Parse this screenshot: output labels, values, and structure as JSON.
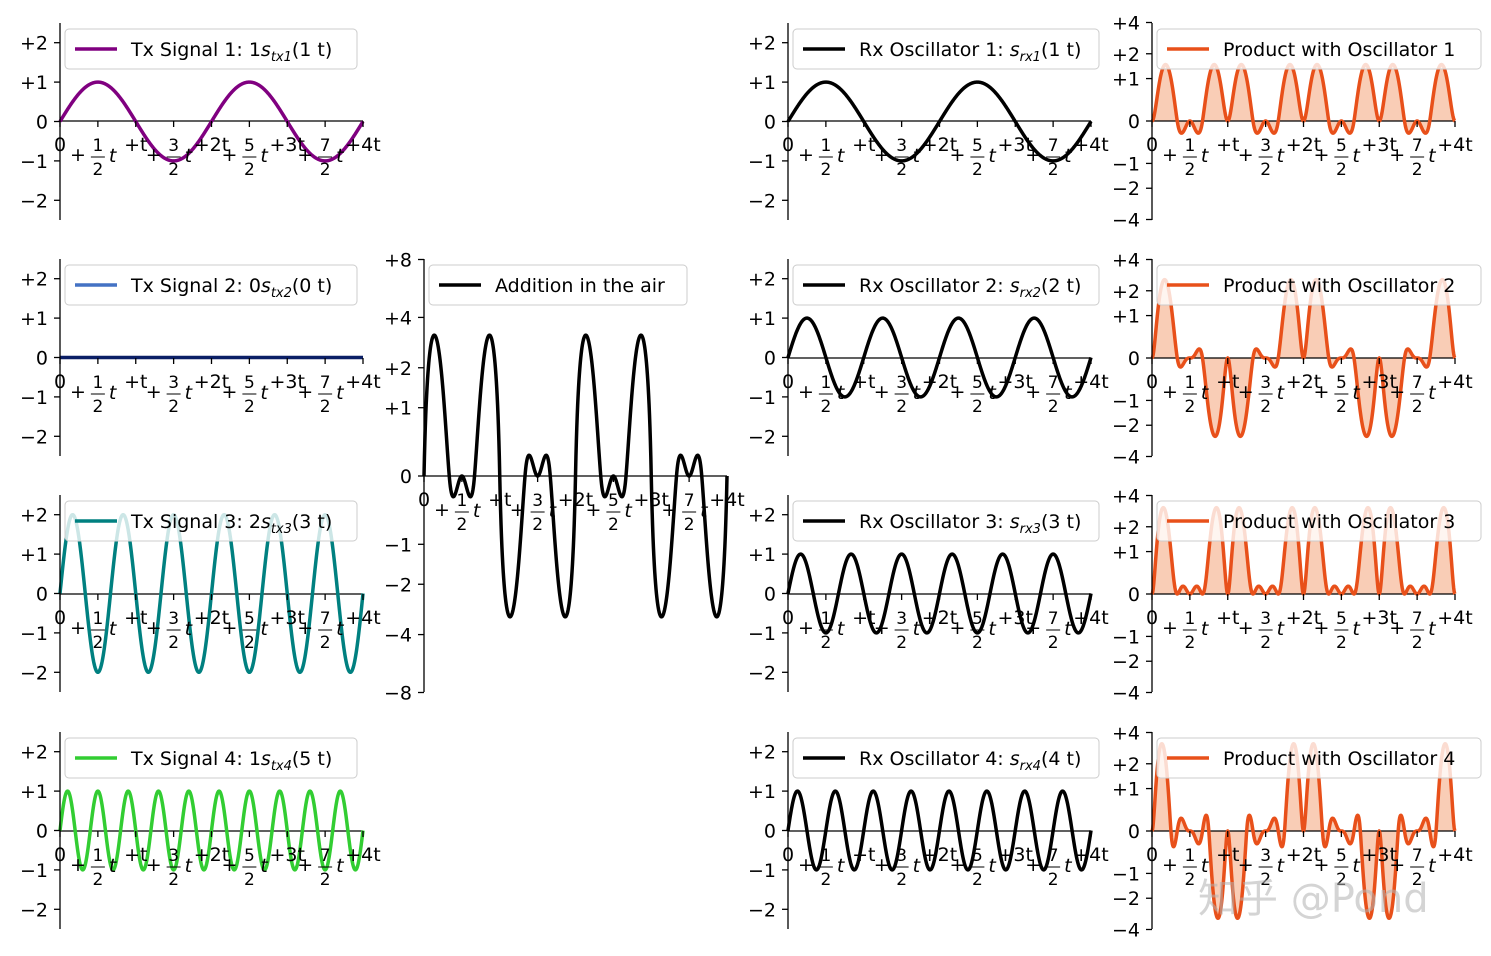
{
  "watermark": "知乎 @Pond",
  "x_tick_labels": [
    {
      "lead": "0"
    },
    {
      "lead": "+",
      "frac": [
        "1",
        "2"
      ],
      "tail": "t"
    },
    {
      "lead": "+t"
    },
    {
      "lead": "+",
      "frac": [
        "3",
        "2"
      ],
      "tail": "t"
    },
    {
      "lead": "+2t"
    },
    {
      "lead": "+",
      "frac": [
        "5",
        "2"
      ],
      "tail": "t"
    },
    {
      "lead": "+3t"
    },
    {
      "lead": "+",
      "frac": [
        "7",
        "2"
      ],
      "tail": "t"
    },
    {
      "lead": "+4t"
    }
  ],
  "colors": {
    "tx1": "#800080",
    "tx2": "#4472c4",
    "tx2_zero": "#0b1f66",
    "tx3": "#008080",
    "tx4": "#32cd32",
    "rx": "#000000",
    "sum": "#000000",
    "product": "#e8501a",
    "product_fill": "#f9cdb6"
  },
  "chart_data": [
    {
      "id": "tx1",
      "type": "line",
      "legend": {
        "text": "Tx Signal 1: 1",
        "sym": "s",
        "sub": "tx1",
        "rest": "(1 t)"
      },
      "amp": 1,
      "freq": 1,
      "x_range": [
        0,
        4
      ],
      "yticks": [
        "+2",
        "+1",
        "0",
        "−1",
        "−2"
      ],
      "ytick_values": [
        2,
        1,
        0,
        -1,
        -2
      ],
      "ylim": [
        -2.5,
        2.5
      ]
    },
    {
      "id": "tx2",
      "type": "line",
      "legend": {
        "text": "Tx Signal 2: 0",
        "sym": "s",
        "sub": "tx2",
        "rest": "(0 t)"
      },
      "amp": 0,
      "freq": 0,
      "x_range": [
        0,
        4
      ],
      "yticks": [
        "+2",
        "+1",
        "0",
        "−1",
        "−2"
      ],
      "ytick_values": [
        2,
        1,
        0,
        -1,
        -2
      ],
      "ylim": [
        -2.5,
        2.5
      ]
    },
    {
      "id": "tx3",
      "type": "line",
      "legend": {
        "text": "Tx Signal 3: 2",
        "sym": "s",
        "sub": "tx3",
        "rest": "(3 t)"
      },
      "amp": 2,
      "freq": 3,
      "x_range": [
        0,
        4
      ],
      "yticks": [
        "+2",
        "+1",
        "0",
        "−1",
        "−2"
      ],
      "ytick_values": [
        2,
        1,
        0,
        -1,
        -2
      ],
      "ylim": [
        -2.5,
        2.5
      ]
    },
    {
      "id": "tx4",
      "type": "line",
      "legend": {
        "text": "Tx Signal 4: 1",
        "sym": "s",
        "sub": "tx4",
        "rest": "(5 t)"
      },
      "amp": 1,
      "freq": 5,
      "x_range": [
        0,
        4
      ],
      "yticks": [
        "+2",
        "+1",
        "0",
        "−1",
        "−2"
      ],
      "ytick_values": [
        2,
        1,
        0,
        -1,
        -2
      ],
      "ylim": [
        -2.5,
        2.5
      ]
    },
    {
      "id": "sum",
      "type": "line",
      "legend": {
        "text": "Addition in the air"
      },
      "components": [
        {
          "amp": 1,
          "freq": 1
        },
        {
          "amp": 0,
          "freq": 2
        },
        {
          "amp": 2,
          "freq": 3
        },
        {
          "amp": 1,
          "freq": 5
        }
      ],
      "x_range": [
        0,
        4
      ],
      "yticks": [
        "+8",
        "+4",
        "+2",
        "+1",
        "0",
        "−1",
        "−2",
        "−4",
        "−8"
      ],
      "ytick_values": [
        8,
        4,
        2,
        1,
        0,
        -1,
        -2,
        -4,
        -8
      ],
      "ylim": [
        -8,
        8
      ],
      "yscale": "symlog"
    },
    {
      "id": "rx1",
      "type": "line",
      "legend": {
        "text": "Rx Oscillator 1: ",
        "sym": "s",
        "sub": "rx1",
        "rest": "(1 t)"
      },
      "amp": 1,
      "freq": 1,
      "x_range": [
        0,
        4
      ],
      "yticks": [
        "+2",
        "+1",
        "0",
        "−1",
        "−2"
      ],
      "ytick_values": [
        2,
        1,
        0,
        -1,
        -2
      ],
      "ylim": [
        -2.5,
        2.5
      ]
    },
    {
      "id": "rx2",
      "type": "line",
      "legend": {
        "text": "Rx Oscillator 2: ",
        "sym": "s",
        "sub": "rx2",
        "rest": "(2 t)"
      },
      "amp": 1,
      "freq": 2,
      "x_range": [
        0,
        4
      ],
      "yticks": [
        "+2",
        "+1",
        "0",
        "−1",
        "−2"
      ],
      "ytick_values": [
        2,
        1,
        0,
        -1,
        -2
      ],
      "ylim": [
        -2.5,
        2.5
      ]
    },
    {
      "id": "rx3",
      "type": "line",
      "legend": {
        "text": "Rx Oscillator 3: ",
        "sym": "s",
        "sub": "rx3",
        "rest": "(3 t)"
      },
      "amp": 1,
      "freq": 3,
      "x_range": [
        0,
        4
      ],
      "yticks": [
        "+2",
        "+1",
        "0",
        "−1",
        "−2"
      ],
      "ytick_values": [
        2,
        1,
        0,
        -1,
        -2
      ],
      "ylim": [
        -2.5,
        2.5
      ]
    },
    {
      "id": "rx4",
      "type": "line",
      "legend": {
        "text": "Rx Oscillator 4: ",
        "sym": "s",
        "sub": "rx4",
        "rest": "(4 t)"
      },
      "amp": 1,
      "freq": 4,
      "x_range": [
        0,
        4
      ],
      "yticks": [
        "+2",
        "+1",
        "0",
        "−1",
        "−2"
      ],
      "ytick_values": [
        2,
        1,
        0,
        -1,
        -2
      ],
      "ylim": [
        -2.5,
        2.5
      ]
    },
    {
      "id": "prod1",
      "type": "area",
      "legend": {
        "text": "Product with Oscillator 1"
      },
      "osc_freq": 1,
      "x_range": [
        0,
        4
      ],
      "yticks": [
        "+4",
        "+2",
        "+1",
        "0",
        "−1",
        "−2",
        "−4"
      ],
      "ytick_values": [
        4,
        2,
        1,
        0,
        -1,
        -2,
        -4
      ],
      "ylim": [
        -4,
        4
      ],
      "yscale": "symlog"
    },
    {
      "id": "prod2",
      "type": "area",
      "legend": {
        "text": "Product with Oscillator 2"
      },
      "osc_freq": 2,
      "x_range": [
        0,
        4
      ],
      "yticks": [
        "+4",
        "+2",
        "+1",
        "0",
        "−1",
        "−2",
        "−4"
      ],
      "ytick_values": [
        4,
        2,
        1,
        0,
        -1,
        -2,
        -4
      ],
      "ylim": [
        -4,
        4
      ],
      "yscale": "symlog"
    },
    {
      "id": "prod3",
      "type": "area",
      "legend": {
        "text": "Product with Oscillator 3"
      },
      "osc_freq": 3,
      "x_range": [
        0,
        4
      ],
      "yticks": [
        "+4",
        "+2",
        "+1",
        "0",
        "−1",
        "−2",
        "−4"
      ],
      "ytick_values": [
        4,
        2,
        1,
        0,
        -1,
        -2,
        -4
      ],
      "ylim": [
        -4,
        4
      ],
      "yscale": "symlog"
    },
    {
      "id": "prod4",
      "type": "area",
      "legend": {
        "text": "Product with Oscillator 4"
      },
      "osc_freq": 4,
      "x_range": [
        0,
        4
      ],
      "yticks": [
        "+4",
        "+2",
        "+1",
        "0",
        "−1",
        "−2",
        "−4"
      ],
      "ytick_values": [
        4,
        2,
        1,
        0,
        -1,
        -2,
        -4
      ],
      "ylim": [
        -4,
        4
      ],
      "yscale": "symlog"
    }
  ]
}
